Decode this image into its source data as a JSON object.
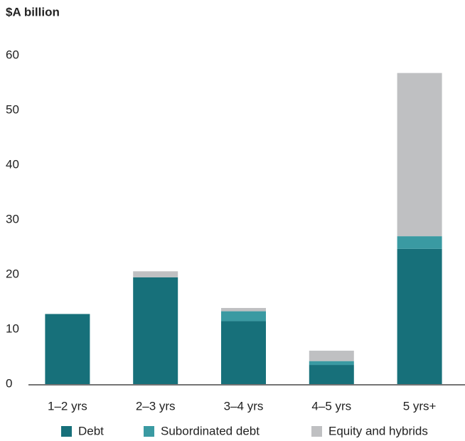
{
  "chart_data": {
    "type": "stacked_bar",
    "title": "$A billion",
    "categories": [
      "1–2 yrs",
      "2–3 yrs",
      "3–4 yrs",
      "4–5 yrs",
      "5 yrs+"
    ],
    "series": [
      {
        "name": "Debt",
        "color": "#17707a",
        "values": [
          12.8,
          19.5,
          11.5,
          3.5,
          24.7
        ]
      },
      {
        "name": "Subordinated debt",
        "color": "#3a9aa2",
        "values": [
          0,
          0,
          1.8,
          0.7,
          2.3
        ]
      },
      {
        "name": "Equity and hybrids",
        "color": "#bfc0c2",
        "values": [
          0,
          1.1,
          0.6,
          1.9,
          29.8
        ]
      }
    ],
    "ylim": [
      0,
      60
    ],
    "yticks": [
      0,
      10,
      20,
      30,
      40,
      50,
      60
    ],
    "grid": false,
    "legend": "bottom"
  }
}
